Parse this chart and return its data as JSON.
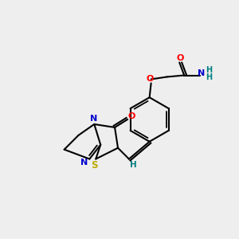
{
  "bg_color": "#eeeeee",
  "atom_colors": {
    "C": "#000000",
    "N": "#0000cc",
    "O": "#ff0000",
    "S": "#bbaa00",
    "H": "#008080"
  },
  "fig_size": [
    3.0,
    3.0
  ],
  "dpi": 100
}
